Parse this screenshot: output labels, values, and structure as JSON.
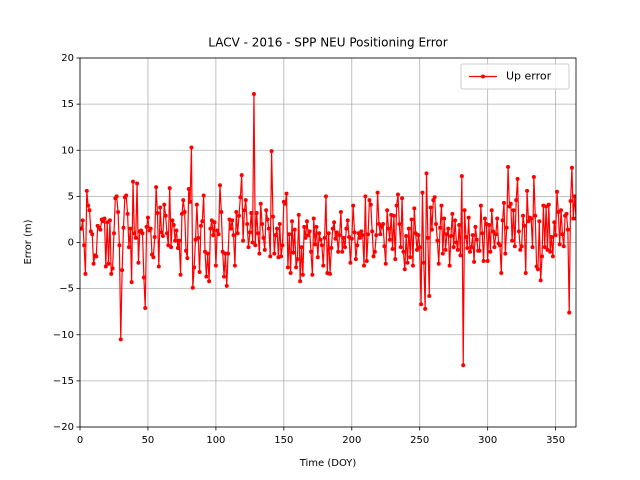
{
  "chart_data": {
    "type": "line",
    "title": "LACV - 2016 - SPP NEU Positioning Error",
    "x_label": "Time (DOY)",
    "y_label": "Error (m)",
    "xlim": [
      0,
      365
    ],
    "ylim": [
      -20,
      20
    ],
    "xticks": [
      0,
      50,
      100,
      150,
      200,
      250,
      300,
      350
    ],
    "yticks": [
      {
        "value": -20,
        "label": "−20"
      },
      {
        "value": -15,
        "label": "−15"
      },
      {
        "value": -10,
        "label": "−10"
      },
      {
        "value": -5,
        "label": "−5"
      },
      0,
      5,
      10,
      15,
      20
    ],
    "grid": true,
    "legend": "upper right",
    "x": [
      1,
      2,
      3,
      4,
      5,
      6,
      7,
      8,
      9,
      10,
      11,
      12,
      13,
      14,
      15,
      16,
      17,
      18,
      19,
      20,
      21,
      22,
      23,
      24,
      25,
      26,
      27,
      28,
      29,
      30,
      31,
      32,
      33,
      34,
      35,
      36,
      37,
      38,
      39,
      40,
      41,
      42,
      43,
      44,
      45,
      46,
      47,
      48,
      49,
      50,
      51,
      52,
      53,
      54,
      55,
      56,
      57,
      58,
      59,
      60,
      61,
      62,
      63,
      64,
      65,
      66,
      67,
      68,
      69,
      70,
      71,
      72,
      73,
      74,
      75,
      76,
      77,
      78,
      79,
      80,
      81,
      82,
      83,
      84,
      85,
      86,
      87,
      88,
      89,
      90,
      91,
      92,
      93,
      94,
      95,
      96,
      97,
      98,
      99,
      100,
      101,
      102,
      103,
      104,
      105,
      106,
      107,
      108,
      109,
      110,
      111,
      112,
      113,
      114,
      115,
      116,
      117,
      118,
      119,
      120,
      121,
      122,
      123,
      124,
      125,
      126,
      127,
      128,
      129,
      130,
      131,
      132,
      133,
      134,
      135,
      136,
      137,
      138,
      139,
      140,
      141,
      142,
      143,
      144,
      145,
      146,
      147,
      148,
      149,
      150,
      151,
      152,
      153,
      154,
      155,
      156,
      157,
      158,
      159,
      160,
      161,
      162,
      163,
      164,
      165,
      166,
      167,
      168,
      169,
      170,
      171,
      172,
      173,
      174,
      175,
      176,
      177,
      178,
      179,
      180,
      181,
      182,
      183,
      184,
      185,
      186,
      187,
      188,
      189,
      190,
      191,
      192,
      193,
      194,
      195,
      196,
      197,
      198,
      199,
      200,
      201,
      202,
      203,
      204,
      205,
      206,
      207,
      208,
      209,
      210,
      211,
      212,
      213,
      214,
      215,
      216,
      217,
      218,
      219,
      220,
      221,
      222,
      223,
      224,
      225,
      226,
      227,
      228,
      229,
      230,
      231,
      232,
      233,
      234,
      235,
      236,
      237,
      238,
      239,
      240,
      241,
      242,
      243,
      244,
      245,
      246,
      247,
      248,
      249,
      250,
      251,
      252,
      253,
      254,
      255,
      256,
      257,
      258,
      259,
      260,
      261,
      262,
      263,
      264,
      265,
      266,
      267,
      268,
      269,
      270,
      271,
      272,
      273,
      274,
      275,
      276,
      277,
      278,
      279,
      280,
      281,
      282,
      283,
      284,
      285,
      286,
      287,
      288,
      289,
      290,
      291,
      292,
      293,
      294,
      295,
      296,
      297,
      298,
      299,
      300,
      301,
      302,
      303,
      304,
      305,
      306,
      307,
      308,
      309,
      310,
      311,
      312,
      313,
      314,
      315,
      316,
      317,
      318,
      319,
      320,
      321,
      322,
      323,
      324,
      325,
      326,
      327,
      328,
      329,
      330,
      331,
      332,
      333,
      334,
      335,
      336,
      337,
      338,
      339,
      340,
      341,
      342,
      343,
      344,
      345,
      346,
      347,
      348,
      349,
      350,
      351,
      352,
      353,
      354,
      355,
      356,
      357,
      358,
      359,
      360,
      361,
      362,
      363,
      364,
      365
    ],
    "series": [
      {
        "name": "Up error",
        "color": "#ff0000",
        "values": [
          1.5,
          2.4,
          -0.3,
          -3.4,
          5.6,
          4.0,
          3.5,
          1.2,
          0.9,
          -2.3,
          -1.4,
          -1.5,
          1.8,
          1.6,
          1.4,
          2.5,
          2.3,
          2.6,
          -2.6,
          2.2,
          -2.3,
          2.4,
          -3.4,
          -2.8,
          1.0,
          4.8,
          5.0,
          3.3,
          -0.3,
          -10.5,
          -3.0,
          1.6,
          4.9,
          5.1,
          3.1,
          -0.5,
          1.5,
          -4.3,
          6.6,
          1.0,
          0.5,
          6.4,
          -2.2,
          1.2,
          1.3,
          1.0,
          -3.8,
          -7.1,
          1.7,
          2.7,
          1.3,
          1.5,
          -1.3,
          -1.6,
          0.6,
          6.0,
          3.2,
          -2.6,
          3.8,
          1.1,
          0.7,
          4.1,
          2.9,
          1.0,
          -0.3,
          5.9,
          -0.5,
          2.4,
          1.9,
          0.2,
          1.3,
          -0.6,
          0.2,
          -3.5,
          3.1,
          4.6,
          3.3,
          -0.9,
          -1.7,
          5.8,
          4.4,
          10.3,
          -4.9,
          -2.7,
          0.3,
          4.1,
          0.5,
          -3.2,
          1.8,
          2.3,
          5.1,
          -1.0,
          -3.7,
          -1.2,
          -4.2,
          1.5,
          2.4,
          0.8,
          2.2,
          -2.5,
          1.3,
          0.9,
          6.2,
          3.3,
          -1.0,
          -3.7,
          -1.2,
          -4.7,
          -1.2,
          2.5,
          1.5,
          2.4,
          0.8,
          -2.5,
          3.3,
          1.0,
          2.9,
          4.9,
          7.3,
          0.2,
          3.5,
          4.6,
          2.0,
          -0.5,
          1.1,
          3.2,
          0.0,
          16.1,
          -0.3,
          3.2,
          1.0,
          -1.2,
          4.2,
          2.0,
          0.5,
          -0.8,
          3.5,
          2.5,
          1.5,
          -1.5,
          9.9,
          2.8,
          -1.2,
          0.8,
          1.5,
          -1.6,
          2.0,
          -1.5,
          -0.3,
          4.4,
          4.2,
          5.3,
          -2.7,
          0.9,
          -3.3,
          2.3,
          -1.1,
          1.4,
          -2.7,
          -1.8,
          3.0,
          -4.2,
          -0.5,
          -3.5,
          1.7,
          0.5,
          2.3,
          0.8,
          1.2,
          -1.0,
          -3.5,
          2.6,
          -0.2,
          1.7,
          -1.6,
          1.0,
          0.3,
          -0.3,
          -2.5,
          0.5,
          5.0,
          -3.3,
          1.0,
          -3.4,
          -0.6,
          1.5,
          2.2,
          0.4,
          1.1,
          -1.0,
          0.8,
          3.3,
          -1.0,
          0.5,
          -0.5,
          1.5,
          2.4,
          0.6,
          -2.2,
          0.4,
          4.0,
          1.1,
          -1.8,
          -0.3,
          1.0,
          0.5,
          1.2,
          0.8,
          -2.5,
          5.0,
          -2.0,
          0.9,
          4.6,
          4.1,
          1.2,
          -1.5,
          -1.0,
          0.8,
          5.4,
          2.0,
          0.9,
          1.7,
          2.0,
          -0.4,
          -2.3,
          3.5,
          1.5,
          0.3,
          3.0,
          -0.7,
          2.9,
          -1.8,
          4.0,
          5.2,
          2.0,
          -0.5,
          4.8,
          -1.0,
          -2.9,
          0.7,
          -2.2,
          1.5,
          -1.6,
          2.5,
          -2.5,
          3.7,
          1.0,
          -0.8,
          0.8,
          -0.5,
          -6.7,
          5.4,
          -2.2,
          -7.2,
          7.5,
          0.5,
          -5.8,
          3.8,
          1.4,
          4.6,
          4.9,
          2.0,
          0.2,
          -2.3,
          1.6,
          4.0,
          -1.2,
          2.6,
          -0.8,
          0.9,
          1.5,
          -2.5,
          0.7,
          3.1,
          -0.5,
          2.4,
          0.0,
          -0.8,
          1.9,
          -1.4,
          7.2,
          -13.3,
          3.5,
          0.6,
          -0.6,
          2.7,
          -1.0,
          -0.5,
          0.8,
          -2.1,
          1.7,
          0.3,
          -0.9,
          -0.9,
          4.0,
          1.0,
          -2.0,
          2.6,
          2.0,
          -2.0,
          1.9,
          -1.0,
          3.5,
          1.2,
          -0.5,
          0.9,
          2.6,
          -0.1,
          -0.3,
          -3.3,
          2.4,
          4.3,
          -1.2,
          1.6,
          8.2,
          3.9,
          4.2,
          0.2,
          3.5,
          -0.4,
          4.6,
          6.9,
          1.2,
          -0.8,
          -0.4,
          2.9,
          1.8,
          -3.3,
          5.6,
          2.3,
          2.7,
          2.6,
          -0.5,
          7.1,
          2.9,
          -2.6,
          -2.9,
          2.3,
          -4.1,
          -1.5,
          4.0,
          -0.5,
          3.9,
          -0.8,
          4.1,
          -1.0,
          0.6,
          -1.5,
          2.2,
          0.8,
          5.5,
          3.3,
          -0.2,
          3.5,
          0.9,
          -0.4,
          2.9,
          3.1,
          1.4,
          -7.6,
          4.5,
          8.1,
          2.6,
          5.0,
          2.6
        ]
      }
    ]
  }
}
